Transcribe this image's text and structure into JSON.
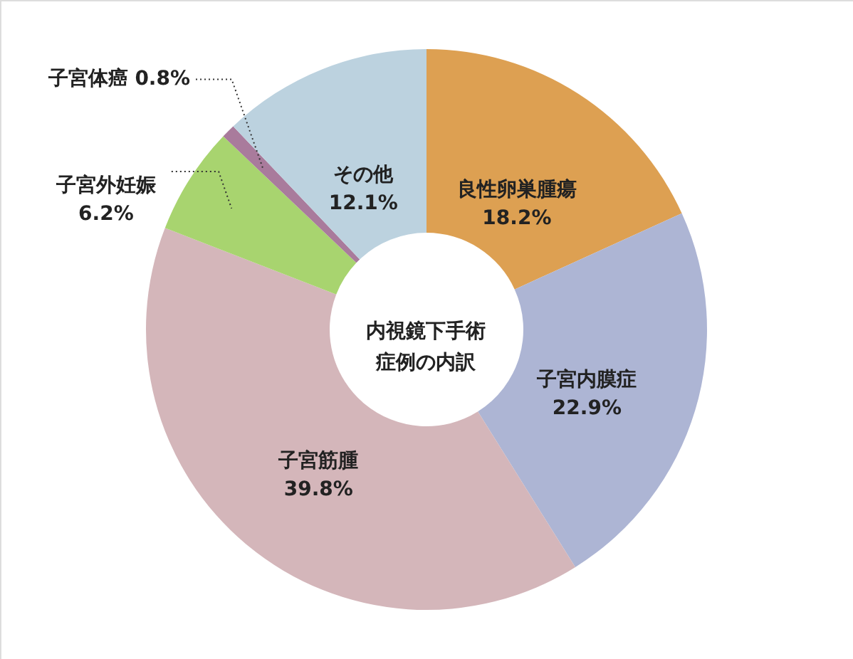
{
  "chart_data": {
    "type": "donut",
    "title": "内視鏡下手術症例の内訳",
    "categories": [
      "良性卵巣腫瘍",
      "子宮内膜症",
      "子宮筋腫",
      "子宮外妊娠",
      "子宮体癌",
      "その他"
    ],
    "values": [
      18.2,
      22.9,
      39.8,
      6.2,
      0.8,
      12.1
    ],
    "value_labels": [
      "18.2%",
      "22.9%",
      "39.8%",
      "6.2%",
      "0.8%",
      "12.1%"
    ],
    "colors": [
      "#dda052",
      "#adb5d4",
      "#d4b6ba",
      "#a8d46f",
      "#a97b9c",
      "#bcd2df"
    ]
  }
}
